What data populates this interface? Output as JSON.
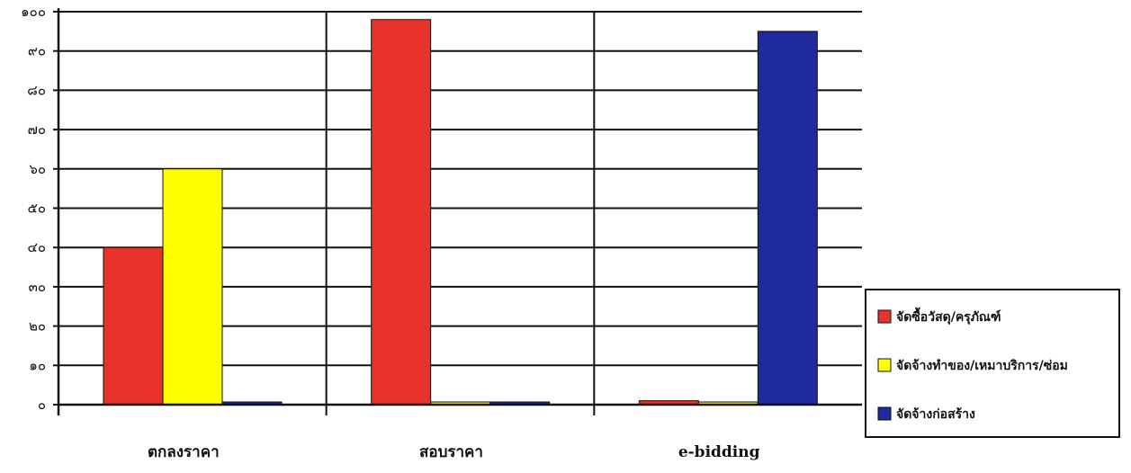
{
  "chart_data": {
    "type": "bar",
    "title": "",
    "xlabel": "",
    "ylabel": "",
    "ylim": [
      0,
      100
    ],
    "y_ticks": [
      0,
      10,
      20,
      30,
      40,
      50,
      60,
      70,
      80,
      90,
      100
    ],
    "y_tick_labels": [
      "๐",
      "๑๐",
      "๒๐",
      "๓๐",
      "๔๐",
      "๕๐",
      "๖๐",
      "๗๐",
      "๘๐",
      "๙๐",
      "๑๐๐"
    ],
    "grid": true,
    "legend_position": "right",
    "categories": [
      "ตกลงราคา",
      "สอบราคา",
      "e-bidding"
    ],
    "series": [
      {
        "name": "จัดซื้อวัสดุ/ครุภัณฑ์",
        "color": "#e8332a",
        "values": [
          40,
          98,
          1
        ]
      },
      {
        "name": "จัดจ้างทำของ/เหมาบริการ/ซ่อม",
        "color": "#ffff00",
        "values": [
          60,
          0.5,
          0.5
        ]
      },
      {
        "name": "จัดจ้างก่อสร้าง",
        "color": "#1f2a9e",
        "values": [
          0.5,
          0.5,
          95
        ]
      }
    ]
  }
}
